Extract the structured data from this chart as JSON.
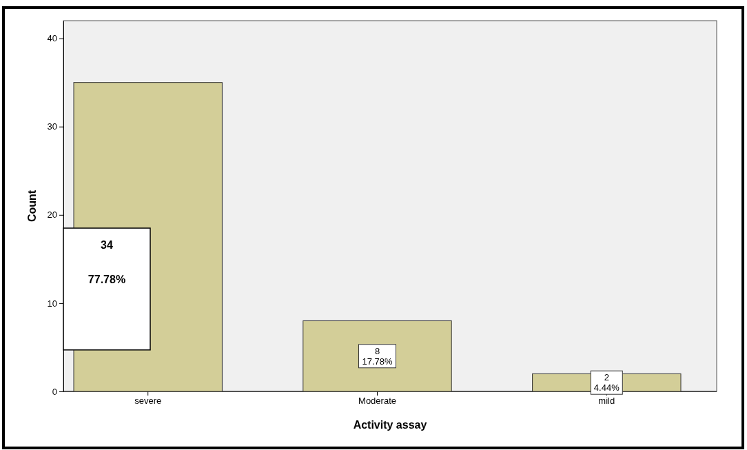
{
  "chart_data": {
    "type": "bar",
    "xlabel": "Activity assay",
    "ylabel": "Count",
    "categories": [
      "severe",
      "Moderate",
      "mild"
    ],
    "values": [
      35,
      8,
      2
    ],
    "color": "#d3ce98",
    "value_labels": [
      null,
      "8\n17.78%",
      "2\n4.44%"
    ],
    "annotations": [
      "34\n77.78%"
    ],
    "ylim": [
      0,
      42
    ],
    "yticks": [
      0,
      10,
      20,
      30,
      40
    ],
    "grid": false
  }
}
